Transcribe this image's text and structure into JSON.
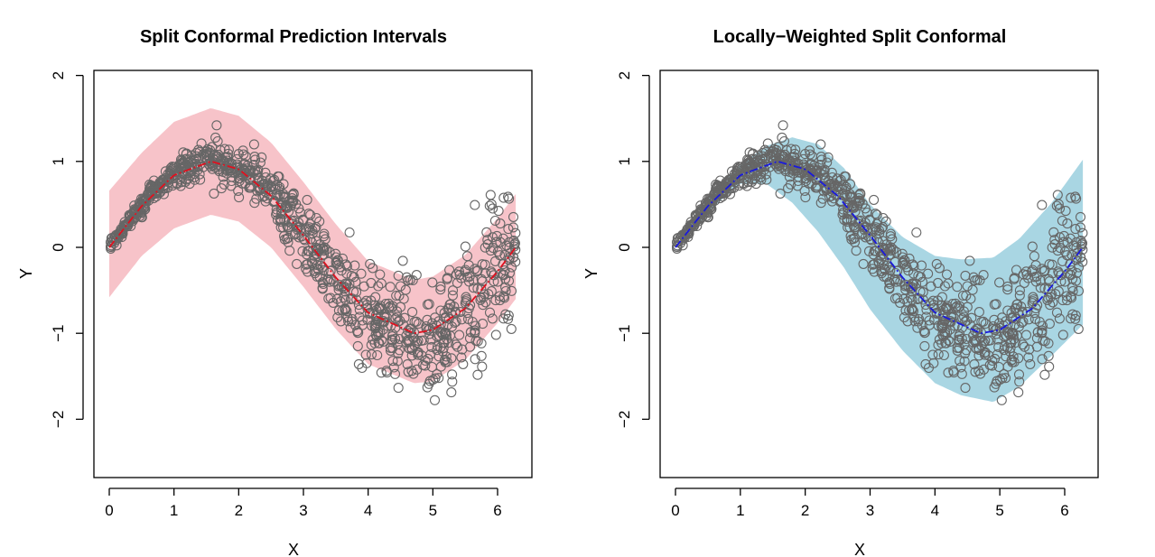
{
  "chart_data": [
    {
      "type": "scatter",
      "title": "Split Conformal Prediction Intervals",
      "xlabel": "X",
      "ylabel": "Y",
      "xlim": [
        0,
        6.28
      ],
      "ylim": [
        -2.6,
        2.0
      ],
      "xticks": [
        0,
        1,
        2,
        3,
        4,
        5,
        6
      ],
      "yticks": [
        -2,
        -1,
        0,
        1,
        2
      ],
      "grid": false,
      "colors": {
        "band": "#f7c3c9",
        "fit": "#e0101e",
        "points": "#666666"
      },
      "fit_curve": {
        "x": [
          0,
          0.5,
          1.0,
          1.57,
          2.0,
          2.5,
          3.0,
          3.5,
          4.0,
          4.71,
          5.0,
          5.5,
          6.0,
          6.28
        ],
        "y": [
          0,
          0.48,
          0.84,
          1.0,
          0.91,
          0.6,
          0.14,
          -0.35,
          -0.76,
          -1.0,
          -0.96,
          -0.71,
          -0.28,
          0.0
        ]
      },
      "interval_band": {
        "x": [
          0,
          0.5,
          1.0,
          1.57,
          2.0,
          2.5,
          3.0,
          3.5,
          4.0,
          4.71,
          5.0,
          5.5,
          6.0,
          6.28
        ],
        "lower": [
          -0.58,
          -0.1,
          0.22,
          0.38,
          0.3,
          0.0,
          -0.46,
          -0.95,
          -1.36,
          -1.58,
          -1.56,
          -1.31,
          -0.88,
          -0.6
        ],
        "upper": [
          0.66,
          1.1,
          1.46,
          1.62,
          1.53,
          1.22,
          0.76,
          0.27,
          -0.16,
          -0.38,
          -0.34,
          -0.09,
          0.34,
          0.62
        ]
      }
    },
    {
      "type": "scatter",
      "title": "Locally−Weighted Split Conformal",
      "xlabel": "X",
      "ylabel": "Y",
      "xlim": [
        0,
        6.28
      ],
      "ylim": [
        -2.6,
        2.0
      ],
      "xticks": [
        0,
        1,
        2,
        3,
        4,
        5,
        6
      ],
      "yticks": [
        -2,
        -1,
        0,
        1,
        2
      ],
      "grid": false,
      "colors": {
        "band": "#a9d6e3",
        "fit": "#1a1adc",
        "points": "#666666"
      },
      "fit_curve": {
        "x": [
          0,
          0.5,
          1.0,
          1.57,
          2.0,
          2.5,
          3.0,
          3.5,
          4.0,
          4.71,
          5.0,
          5.5,
          6.0,
          6.28
        ],
        "y": [
          0,
          0.48,
          0.84,
          1.0,
          0.91,
          0.6,
          0.14,
          -0.35,
          -0.76,
          -1.0,
          -0.96,
          -0.71,
          -0.28,
          0.0
        ]
      },
      "interval_band": {
        "x": [
          0,
          0.3,
          0.6,
          1.0,
          1.4,
          1.8,
          2.2,
          2.6,
          3.0,
          3.5,
          4.0,
          4.4,
          4.9,
          5.3,
          5.8,
          6.28
        ],
        "lower": [
          0,
          0.22,
          0.48,
          0.74,
          0.74,
          0.52,
          0.18,
          -0.24,
          -0.72,
          -1.2,
          -1.58,
          -1.72,
          -1.8,
          -1.62,
          -1.26,
          -0.9
        ],
        "upper": [
          0,
          0.34,
          0.66,
          0.96,
          1.18,
          1.28,
          1.2,
          0.92,
          0.5,
          0.12,
          -0.1,
          -0.14,
          -0.12,
          0.1,
          0.52,
          1.02
        ]
      }
    }
  ]
}
